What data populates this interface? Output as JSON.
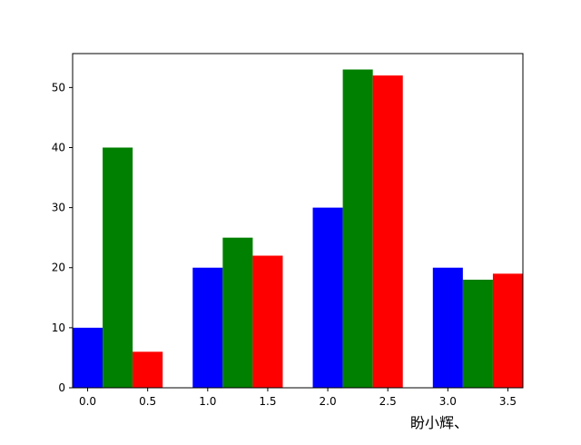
{
  "chart_data": {
    "type": "bar",
    "x": [
      0,
      1,
      2,
      3
    ],
    "bar_width": 0.25,
    "series": [
      {
        "color": "#0000ff",
        "offset": 0.0,
        "values": [
          10,
          20,
          30,
          20
        ]
      },
      {
        "color": "#008000",
        "offset": 0.25,
        "values": [
          40,
          25,
          53,
          18
        ]
      },
      {
        "color": "#ff0000",
        "offset": 0.5,
        "values": [
          6,
          22,
          52,
          19
        ]
      }
    ],
    "xlim": [
      -0.125,
      3.625
    ],
    "ylim": [
      0,
      55.65
    ],
    "xticks": [
      0.0,
      0.5,
      1.0,
      1.5,
      2.0,
      2.5,
      3.0,
      3.5
    ],
    "xtick_labels": [
      "0.0",
      "0.5",
      "1.0",
      "1.5",
      "2.0",
      "2.5",
      "3.0",
      "3.5"
    ],
    "yticks": [
      0,
      10,
      20,
      30,
      40,
      50
    ],
    "ytick_labels": [
      "0",
      "10",
      "20",
      "30",
      "40",
      "50"
    ],
    "grid": false,
    "legend": "none"
  },
  "watermark": "盼小辉、"
}
